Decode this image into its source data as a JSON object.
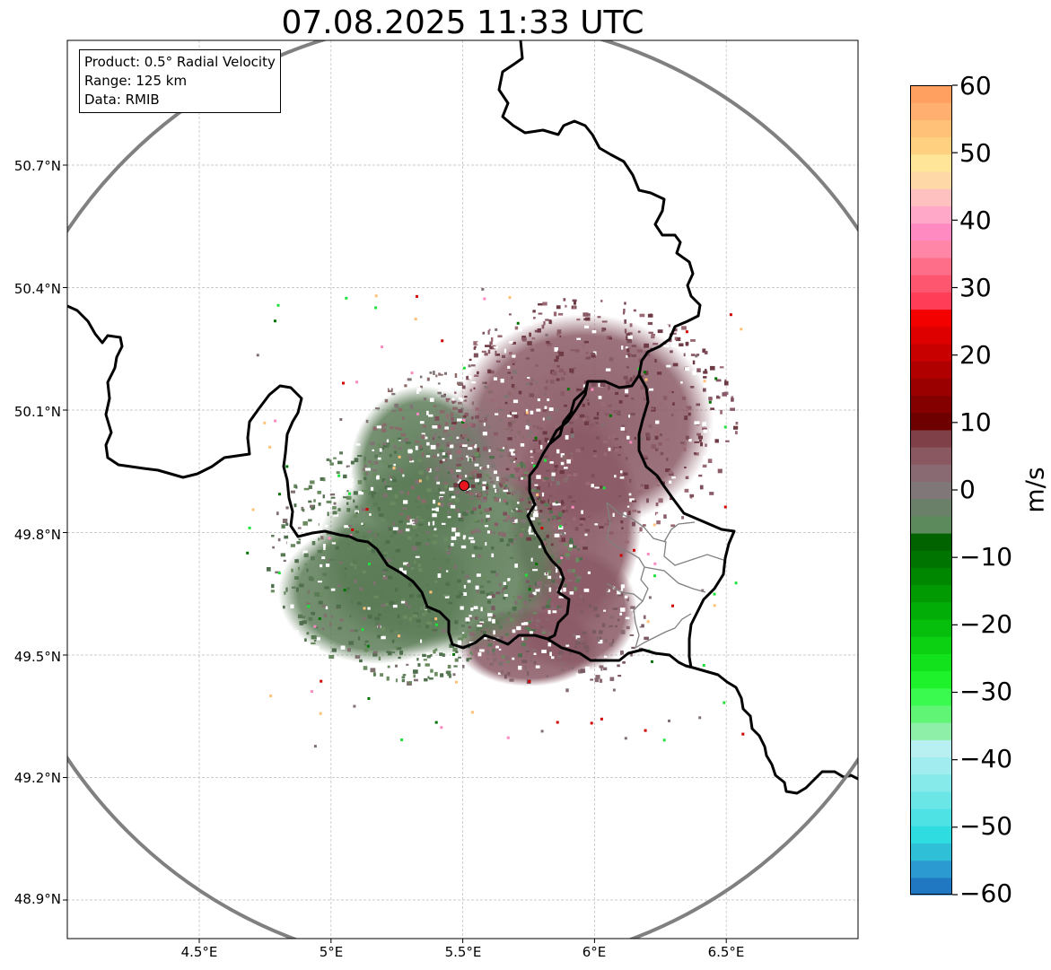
{
  "title": "07.08.2025 11:33 UTC",
  "info_box": {
    "product": "Product: 0.5° Radial Velocity",
    "range": "Range: 125 km",
    "source": "Data: RMIB"
  },
  "axes": {
    "lat_labels": [
      "50.7°N",
      "50.4°N",
      "50.1°N",
      "49.8°N",
      "49.5°N",
      "49.2°N",
      "48.9°N"
    ],
    "lon_labels": [
      "4.5°E",
      "5°E",
      "5.5°E",
      "6°E",
      "6.5°E"
    ],
    "lat_values": [
      50.7,
      50.4,
      50.1,
      49.8,
      49.5,
      49.2,
      48.9
    ],
    "lon_values": [
      4.5,
      5.0,
      5.5,
      6.0,
      6.5
    ],
    "lon_range": [
      4.0,
      7.0
    ],
    "lat_range": [
      48.8,
      51.0
    ],
    "grid": true
  },
  "radar": {
    "lon": 5.505,
    "lat": 49.915,
    "range_km": 125,
    "marker_color": "#e8141e",
    "range_ring_color": "#808080"
  },
  "colorbar": {
    "unit": "m/s",
    "min": -60,
    "max": 60,
    "tick_labels": [
      "60",
      "50",
      "40",
      "30",
      "20",
      "10",
      "0",
      "−10",
      "−20",
      "−30",
      "−40",
      "−50",
      "−60"
    ],
    "tick_values": [
      60,
      50,
      40,
      30,
      20,
      10,
      0,
      -10,
      -20,
      -30,
      -40,
      -50,
      -60
    ],
    "colors_low_to_high": [
      "#1f78c1",
      "#2a9ad0",
      "#2fc0d8",
      "#2fdde0",
      "#4fe2e4",
      "#6be6e6",
      "#86e9ea",
      "#a0ecee",
      "#b8f0f2",
      "#8ef0a8",
      "#60f575",
      "#3bfa4f",
      "#1ef22b",
      "#12e21c",
      "#0cd012",
      "#06be0c",
      "#03ad07",
      "#019a03",
      "#008700",
      "#007400",
      "#006300",
      "#5c8a5c",
      "#6a8068",
      "#807878",
      "#8a6a72",
      "#8a5860",
      "#7f4048",
      "#6e0000",
      "#840000",
      "#9a0000",
      "#b00000",
      "#c80000",
      "#de0000",
      "#f30000",
      "#ff3d56",
      "#ff5670",
      "#ff6e88",
      "#ff86a6",
      "#ff8ac2",
      "#ffa8c8",
      "#ffc0c0",
      "#ffd8a8",
      "#ffe598",
      "#ffd080",
      "#ffc078",
      "#ffb070",
      "#ffa060"
    ]
  },
  "colors": {
    "receding": "#8a5a66",
    "approaching": "#5a7a56",
    "border": "#000000",
    "admin_border": "#808080"
  }
}
